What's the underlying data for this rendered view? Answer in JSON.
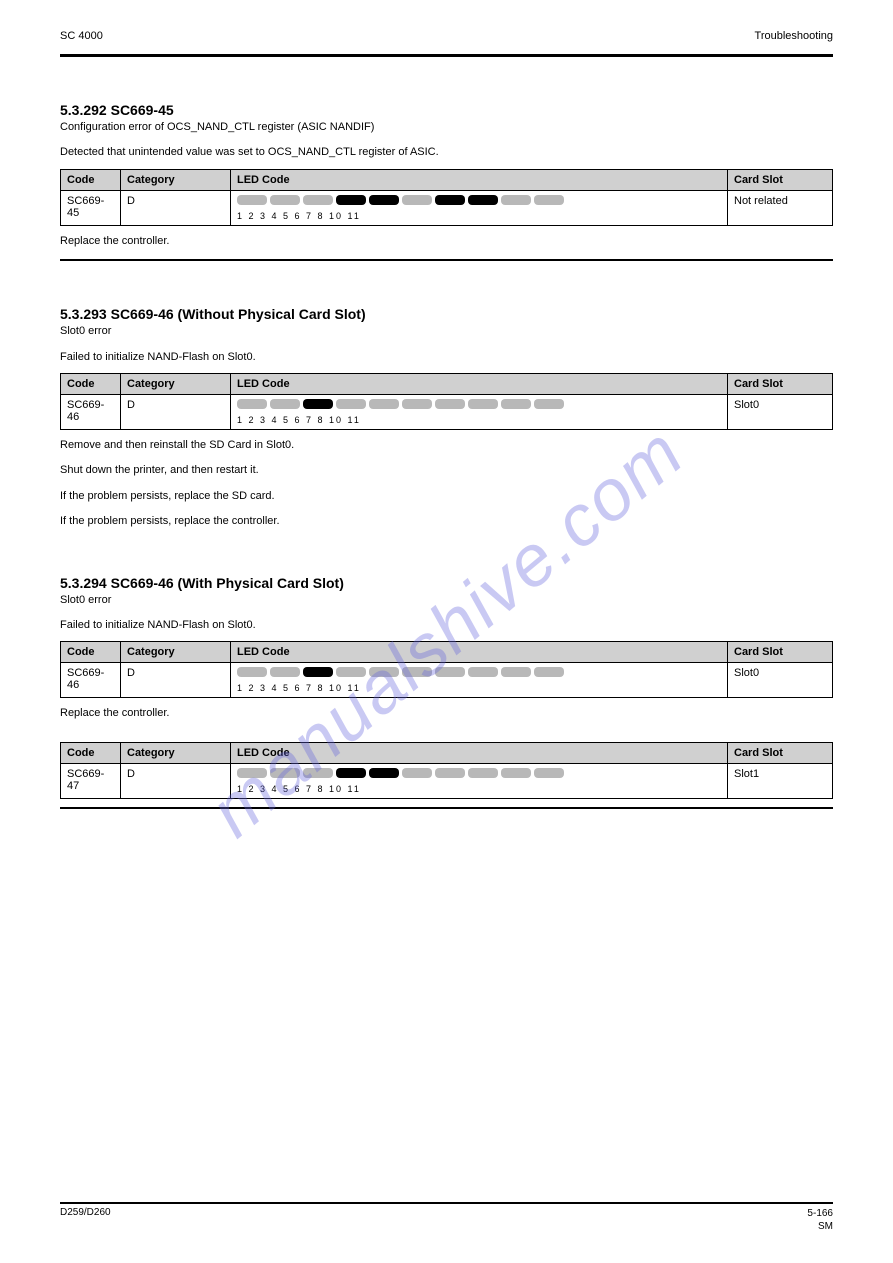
{
  "watermark": "manualshive.com",
  "header": {
    "left": "SC 4000",
    "right": "Troubleshooting"
  },
  "sections": [
    {
      "heading": "5.3.292 SC669-45",
      "subheading_para": "Configuration error of OCS_NAND_CTL register (ASIC NANDIF)",
      "intro_para": "Detected that unintended value was set to OCS_NAND_CTL register of ASIC.",
      "table": {
        "headers": [
          "Code",
          "Category",
          "LED Code",
          "Card Slot"
        ],
        "row": {
          "code": "SC669-45",
          "category": "D",
          "leds": {
            "labels": "1    2    3    4    5    6    7    8    10    11",
            "pattern": [
              0,
              0,
              0,
              1,
              1,
              0,
              1,
              1,
              0,
              0
            ]
          },
          "card": "Not related"
        }
      },
      "post_para": "Replace the controller.",
      "divider_after": true
    },
    {
      "heading": "5.3.293 SC669-46 (Without Physical Card Slot)",
      "subheading_para": "Slot0 error",
      "intro_para": "Failed to initialize NAND-Flash on Slot0.",
      "table": {
        "headers": [
          "Code",
          "Category",
          "LED Code",
          "Card Slot"
        ],
        "row": {
          "code": "SC669-46",
          "category": "D",
          "leds": {
            "labels": "1    2    3    4    5    6    7    8    10    11",
            "pattern": [
              0,
              0,
              1,
              0,
              0,
              0,
              0,
              0,
              0,
              0
            ]
          },
          "card": "Slot0"
        }
      },
      "post_list": [
        "Remove and then reinstall the SD Card in Slot0.",
        "Shut down the printer, and then restart it.",
        "If the problem persists, replace the SD card.",
        "If the problem persists, replace the controller."
      ],
      "divider_after": false
    },
    {
      "heading": "5.3.294 SC669-46 (With Physical Card Slot)",
      "subheading_para": "Slot0 error",
      "intro_para": "Failed to initialize NAND-Flash on Slot0.",
      "table": {
        "headers": [
          "Code",
          "Category",
          "LED Code",
          "Card Slot"
        ],
        "row": {
          "code": "SC669-46",
          "category": "D",
          "leds": {
            "labels": "1    2    3    4    5    6    7    8    10    11",
            "pattern": [
              0,
              0,
              1,
              0,
              0,
              0,
              0,
              0,
              0,
              0
            ]
          },
          "card": "Slot0"
        }
      },
      "post_para": "Replace the controller.",
      "divider_after": false
    },
    {
      "heading_none": true,
      "table": {
        "headers": [
          "Code",
          "Category",
          "LED Code",
          "Card Slot"
        ],
        "row": {
          "code": "SC669-47",
          "category": "D",
          "leds": {
            "labels": "1    2    3    4    5    6    7    8    10    11",
            "pattern": [
              0,
              0,
              0,
              1,
              1,
              0,
              0,
              0,
              0,
              0
            ]
          },
          "card": "Slot1"
        }
      },
      "divider_after": true,
      "tight_divider": true
    }
  ],
  "footer": {
    "left": "D259/D260",
    "right_top": "5-166",
    "right_bottom": "SM"
  },
  "styling": {
    "led_off_color": "#b8b8b8",
    "led_on_color": "#000000",
    "header_bg": "#d0d0d0",
    "text_color": "#000000",
    "watermark_color": "rgba(100,100,220,0.35)"
  }
}
